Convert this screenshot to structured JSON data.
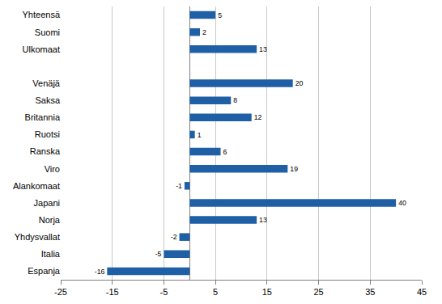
{
  "chart_data": {
    "type": "bar",
    "orientation": "horizontal",
    "categories": [
      "Yhteensä",
      "Suomi",
      "Ulkomaat",
      null,
      "Venäjä",
      "Saksa",
      "Britannia",
      "Ruotsi",
      "Ranska",
      "Viro",
      "Alankomaat",
      "Japani",
      "Norja",
      "Yhdysvallat",
      "Italia",
      "Espanja"
    ],
    "values": [
      5,
      2,
      13,
      null,
      20,
      8,
      12,
      1,
      6,
      19,
      -1,
      40,
      13,
      -2,
      -5,
      -16
    ],
    "color": "#1f5fa6",
    "xlim": [
      -25,
      45
    ],
    "xticks": [
      -25,
      -15,
      -5,
      5,
      15,
      25,
      35,
      45
    ],
    "grid": true,
    "data_labels": true
  }
}
